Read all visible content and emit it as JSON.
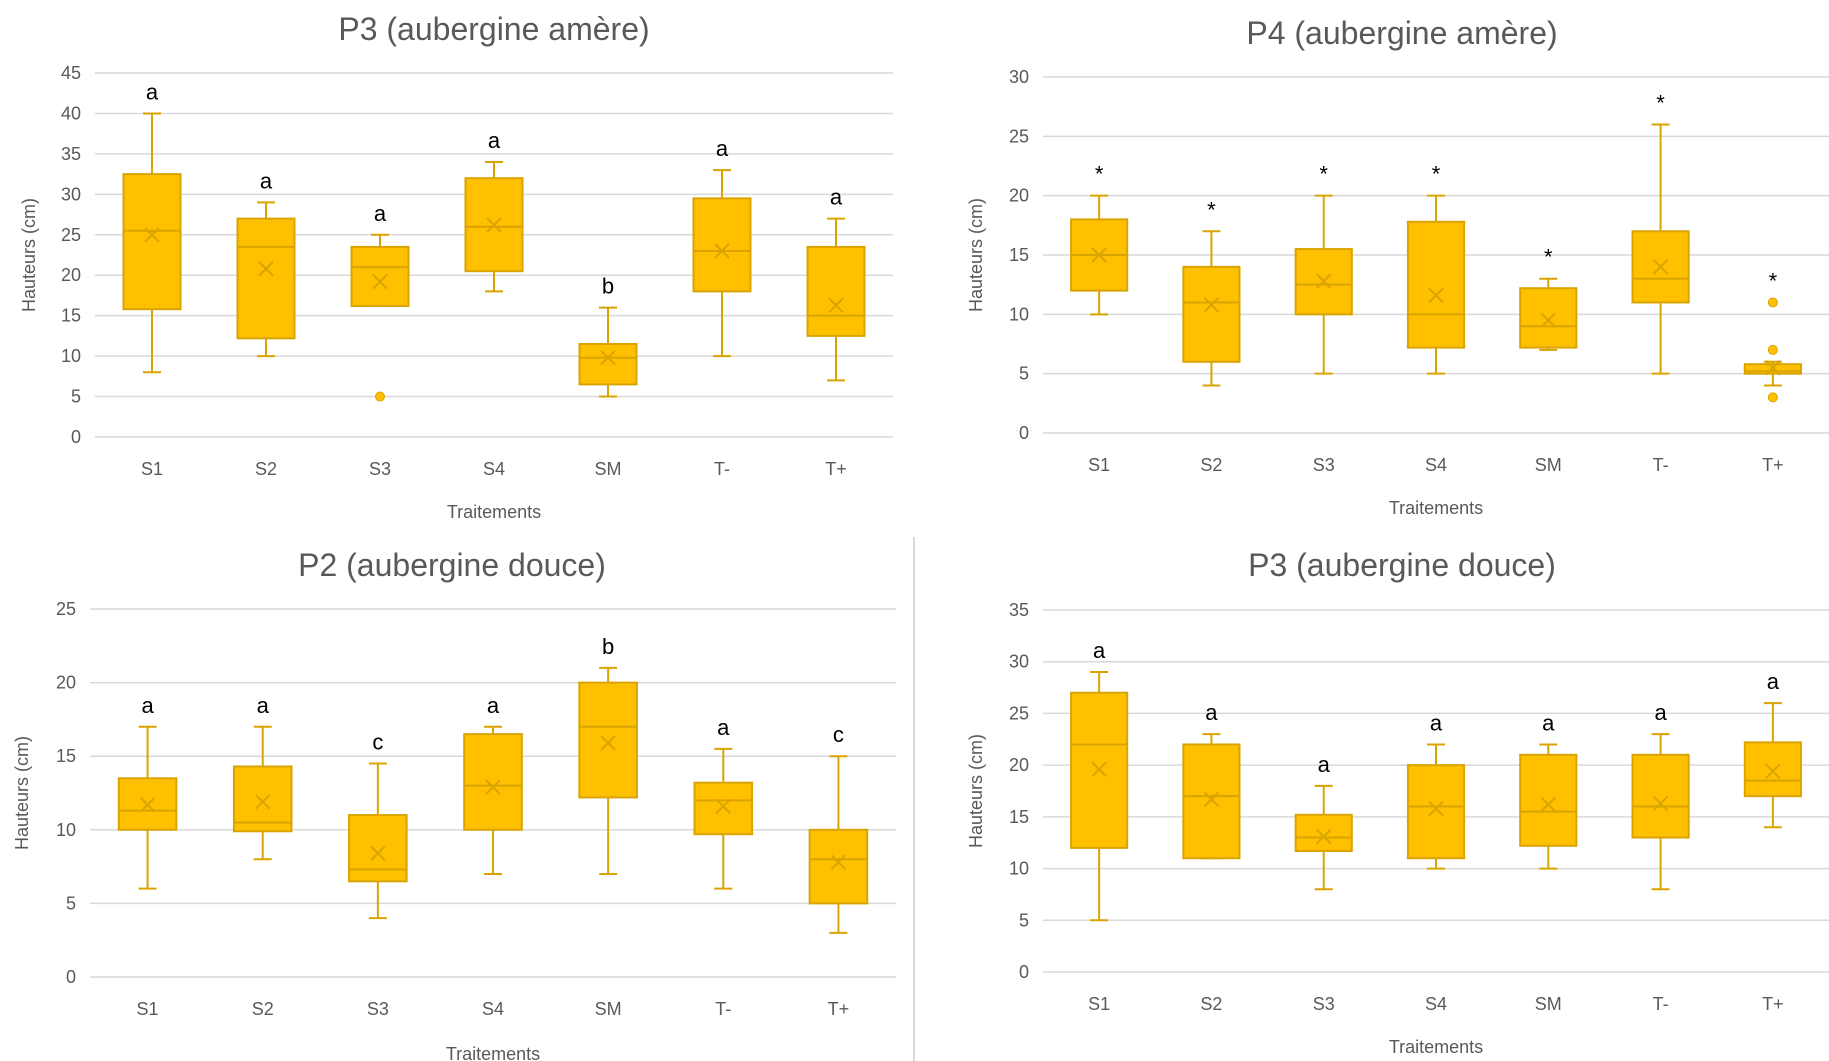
{
  "colors": {
    "box_fill": "#ffc000",
    "box_stroke": "#d9a400",
    "grid": "#d9d9d9",
    "text": "#595959"
  },
  "chart_data": [
    {
      "type": "box",
      "title": "P3 (aubergine amère)",
      "xlabel": "Traitements",
      "ylabel": "Hauteurs (cm)",
      "ylim": [
        0,
        45
      ],
      "yticks": [
        0,
        5,
        10,
        15,
        20,
        25,
        30,
        35,
        40,
        45
      ],
      "categories": [
        "S1",
        "S2",
        "S3",
        "S4",
        "SM",
        "T-",
        "T+"
      ],
      "boxes": [
        {
          "min": 8,
          "q1": 15.8,
          "median": 25.5,
          "q3": 32.5,
          "max": 40,
          "mean": 25,
          "outliers": []
        },
        {
          "min": 10,
          "q1": 12.2,
          "median": 23.5,
          "q3": 27,
          "max": 29,
          "mean": 20.8,
          "outliers": []
        },
        {
          "min": 16.2,
          "q1": 16.2,
          "median": 21,
          "q3": 23.5,
          "max": 25,
          "mean": 19.2,
          "outliers": [
            5
          ]
        },
        {
          "min": 18,
          "q1": 20.5,
          "median": 26,
          "q3": 32,
          "max": 34,
          "mean": 26.2,
          "outliers": []
        },
        {
          "min": 5,
          "q1": 6.5,
          "median": 9.8,
          "q3": 11.5,
          "max": 16,
          "mean": 9.8,
          "outliers": []
        },
        {
          "min": 10,
          "q1": 18,
          "median": 23,
          "q3": 29.5,
          "max": 33,
          "mean": 23,
          "outliers": []
        },
        {
          "min": 7,
          "q1": 12.5,
          "median": 15,
          "q3": 23.5,
          "max": 27,
          "mean": 16.3,
          "outliers": []
        }
      ],
      "labels": [
        "a",
        "a",
        "a",
        "a",
        "b",
        "a",
        "a"
      ]
    },
    {
      "type": "box",
      "title": "P4 (aubergine amère)",
      "xlabel": "Traitements",
      "ylabel": "Hauteurs (cm)",
      "ylim": [
        0,
        30
      ],
      "yticks": [
        0,
        5,
        10,
        15,
        20,
        25,
        30
      ],
      "categories": [
        "S1",
        "S2",
        "S3",
        "S4",
        "SM",
        "T-",
        "T+"
      ],
      "boxes": [
        {
          "min": 10,
          "q1": 12,
          "median": 15,
          "q3": 18,
          "max": 20,
          "mean": 15,
          "outliers": []
        },
        {
          "min": 4,
          "q1": 6,
          "median": 11,
          "q3": 14,
          "max": 17,
          "mean": 10.8,
          "outliers": []
        },
        {
          "min": 5,
          "q1": 10,
          "median": 12.5,
          "q3": 15.5,
          "max": 20,
          "mean": 12.8,
          "outliers": []
        },
        {
          "min": 5,
          "q1": 7.2,
          "median": 10,
          "q3": 17.8,
          "max": 20,
          "mean": 11.6,
          "outliers": []
        },
        {
          "min": 7,
          "q1": 7.2,
          "median": 9,
          "q3": 12.2,
          "max": 13,
          "mean": 9.5,
          "outliers": []
        },
        {
          "min": 5,
          "q1": 11,
          "median": 13,
          "q3": 17,
          "max": 26,
          "mean": 14,
          "outliers": []
        },
        {
          "min": 4,
          "q1": 5,
          "median": 5.2,
          "q3": 5.8,
          "max": 6,
          "mean": 5.5,
          "outliers": [
            11,
            7,
            3
          ]
        }
      ],
      "labels": [
        "*",
        "*",
        "*",
        "*",
        "*",
        "*",
        "*"
      ]
    },
    {
      "type": "box",
      "title": "P2 (aubergine douce)",
      "xlabel": "Traitements",
      "ylabel": "Hauteurs (cm)",
      "ylim": [
        0,
        25
      ],
      "yticks": [
        0,
        5,
        10,
        15,
        20,
        25
      ],
      "categories": [
        "S1",
        "S2",
        "S3",
        "S4",
        "SM",
        "T-",
        "T+"
      ],
      "boxes": [
        {
          "min": 6,
          "q1": 10,
          "median": 11.3,
          "q3": 13.5,
          "max": 17,
          "mean": 11.7,
          "outliers": []
        },
        {
          "min": 8,
          "q1": 9.9,
          "median": 10.5,
          "q3": 14.3,
          "max": 17,
          "mean": 11.9,
          "outliers": []
        },
        {
          "min": 4,
          "q1": 6.5,
          "median": 7.3,
          "q3": 11,
          "max": 14.5,
          "mean": 8.4,
          "outliers": []
        },
        {
          "min": 7,
          "q1": 10,
          "median": 13,
          "q3": 16.5,
          "max": 17,
          "mean": 12.9,
          "outliers": []
        },
        {
          "min": 7,
          "q1": 12.2,
          "median": 17,
          "q3": 20,
          "max": 21,
          "mean": 15.9,
          "outliers": []
        },
        {
          "min": 6,
          "q1": 9.7,
          "median": 12,
          "q3": 13.2,
          "max": 15.5,
          "mean": 11.6,
          "outliers": []
        },
        {
          "min": 3,
          "q1": 5,
          "median": 8,
          "q3": 10,
          "max": 15,
          "mean": 7.8,
          "outliers": []
        }
      ],
      "labels": [
        "a",
        "a",
        "c",
        "a",
        "b",
        "a",
        "c"
      ]
    },
    {
      "type": "box",
      "title": "P3 (aubergine douce)",
      "xlabel": "Traitements",
      "ylabel": "Hauteurs (cm)",
      "ylim": [
        0,
        35
      ],
      "yticks": [
        0,
        5,
        10,
        15,
        20,
        25,
        30,
        35
      ],
      "categories": [
        "S1",
        "S2",
        "S3",
        "S4",
        "SM",
        "T-",
        "T+"
      ],
      "boxes": [
        {
          "min": 5,
          "q1": 12,
          "median": 22,
          "q3": 27,
          "max": 29,
          "mean": 19.6,
          "outliers": []
        },
        {
          "min": 11,
          "q1": 11,
          "median": 17,
          "q3": 22,
          "max": 23,
          "mean": 16.7,
          "outliers": []
        },
        {
          "min": 8,
          "q1": 11.7,
          "median": 13,
          "q3": 15.2,
          "max": 18,
          "mean": 13.1,
          "outliers": []
        },
        {
          "min": 10,
          "q1": 11,
          "median": 16,
          "q3": 20,
          "max": 22,
          "mean": 15.8,
          "outliers": []
        },
        {
          "min": 10,
          "q1": 12.2,
          "median": 15.5,
          "q3": 21,
          "max": 22,
          "mean": 16.2,
          "outliers": []
        },
        {
          "min": 8,
          "q1": 13,
          "median": 16,
          "q3": 21,
          "max": 23,
          "mean": 16.3,
          "outliers": []
        },
        {
          "min": 14,
          "q1": 17,
          "median": 18.5,
          "q3": 22.2,
          "max": 26,
          "mean": 19.4,
          "outliers": []
        }
      ],
      "labels": [
        "a",
        "a",
        "a",
        "a",
        "a",
        "a",
        "a"
      ]
    }
  ]
}
